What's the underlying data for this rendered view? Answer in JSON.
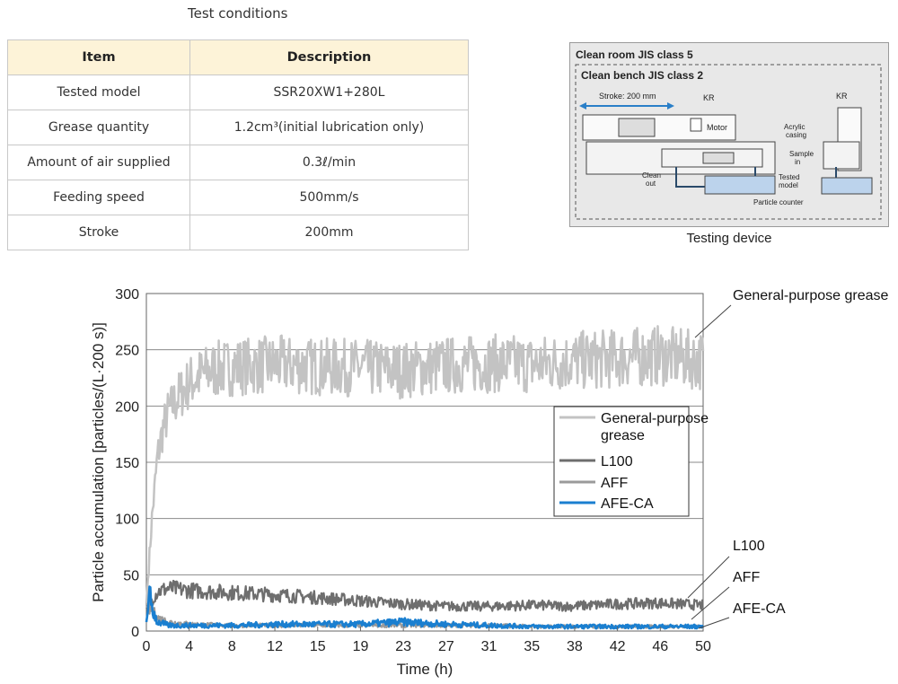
{
  "table": {
    "caption": "Test conditions",
    "headers": [
      "Item",
      "Description"
    ],
    "rows": [
      {
        "item": "Tested model",
        "desc": "SSR20XW1+280L"
      },
      {
        "item": "Grease quantity",
        "desc": "1.2cm³(initial lubrication only)"
      },
      {
        "item": "Amount of air supplied",
        "desc": "0.3ℓ/min"
      },
      {
        "item": "Feeding speed",
        "desc": "500mm/s"
      },
      {
        "item": "Stroke",
        "desc": "200mm"
      }
    ]
  },
  "device": {
    "caption": "Testing device",
    "room_label": "Clean room JIS class 5",
    "bench_label": "Clean bench JIS class 2",
    "stroke_label": "Stroke: 200 mm",
    "kr_label": "KR",
    "kr_label2": "KR",
    "motor_label": "Motor",
    "acrylic_label1": "Acrylic",
    "acrylic_label2": "casing",
    "sample_label1": "Sample",
    "sample_label2": "in",
    "clean_label1": "Clean",
    "clean_label2": "out",
    "tested_label1": "Tested",
    "tested_label2": "model",
    "counter_label": "Particle counter"
  },
  "chart_data": {
    "type": "line",
    "xlabel": "Time (h)",
    "ylabel": "Particle accumulation [particles/(L·200 s)]",
    "x_ticks": [
      "0",
      "4",
      "8",
      "12",
      "15",
      "19",
      "23",
      "27",
      "31",
      "35",
      "38",
      "42",
      "46",
      "50"
    ],
    "y_ticks": [
      0,
      50,
      100,
      150,
      200,
      250,
      300
    ],
    "xlim": [
      0,
      50
    ],
    "ylim": [
      0,
      300
    ],
    "grid": "horizontal",
    "legend_position": "center-right",
    "legend": [
      "General-purpose\ngrease",
      "L100",
      "AFF",
      "AFE-CA"
    ],
    "series": [
      {
        "name": "General-purpose grease",
        "color": "#c3c3c3",
        "x": [
          0,
          0.5,
          1,
          1.5,
          2,
          3,
          4,
          5,
          6,
          8,
          10,
          12,
          15,
          19,
          23,
          27,
          31,
          35,
          38,
          42,
          46,
          50
        ],
        "values": [
          25,
          100,
          155,
          180,
          195,
          210,
          222,
          228,
          232,
          235,
          236,
          237,
          235,
          234,
          232,
          236,
          238,
          237,
          240,
          242,
          245,
          240
        ]
      },
      {
        "name": "L100",
        "color": "#6e6e6e",
        "x": [
          0,
          0.5,
          1,
          2,
          4,
          8,
          12,
          15,
          19,
          23,
          27,
          31,
          35,
          38,
          42,
          46,
          50
        ],
        "values": [
          20,
          28,
          35,
          38,
          36,
          34,
          32,
          30,
          27,
          24,
          22,
          22,
          23,
          22,
          24,
          25,
          23
        ]
      },
      {
        "name": "AFF",
        "color": "#9a9a9a",
        "x": [
          0,
          0.5,
          1,
          2,
          4,
          8,
          12,
          15,
          19,
          23,
          27,
          31,
          35,
          38,
          42,
          46,
          50
        ],
        "values": [
          22,
          18,
          12,
          8,
          6,
          5,
          5,
          5,
          5,
          5,
          5,
          5,
          4,
          4,
          4,
          4,
          4
        ]
      },
      {
        "name": "AFE-CA",
        "color": "#1a7fd0",
        "x": [
          0,
          0.3,
          0.6,
          1,
          2,
          4,
          8,
          12,
          15,
          19,
          23,
          27,
          31,
          35,
          38,
          42,
          46,
          50
        ],
        "values": [
          8,
          30,
          18,
          8,
          5,
          5,
          5,
          6,
          6,
          6,
          8,
          6,
          5,
          4,
          4,
          4,
          4,
          4
        ]
      }
    ],
    "annotations": [
      "General-purpose grease",
      "L100",
      "AFF",
      "AFE-CA"
    ]
  }
}
